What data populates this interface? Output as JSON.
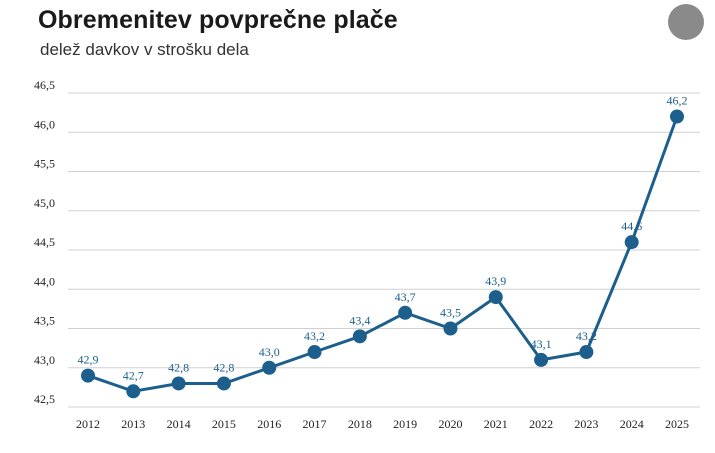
{
  "header": {
    "title": "Obremenitev povprečne plače",
    "subtitle": "delež davkov v strošku dela"
  },
  "colors": {
    "series": "#1d5f8c",
    "label": "#1d5f8c",
    "grid": "#d0d0d0",
    "badge": "#8a8a8a"
  },
  "chart_data": {
    "type": "line",
    "title": "Obremenitev povprečne plače",
    "subtitle": "delež davkov v strošku dela",
    "xlabel": "",
    "ylabel": "",
    "x": [
      "2012",
      "2013",
      "2014",
      "2015",
      "2016",
      "2017",
      "2018",
      "2019",
      "2020",
      "2021",
      "2022",
      "2023",
      "2024",
      "2025"
    ],
    "series": [
      {
        "values": [
          42.9,
          42.7,
          42.8,
          42.8,
          43.0,
          43.2,
          43.4,
          43.7,
          43.5,
          43.9,
          43.1,
          43.2,
          44.6,
          46.2
        ]
      }
    ],
    "data_labels": [
      "42,9",
      "42,7",
      "42,8",
      "42,8",
      "43,0",
      "43,2",
      "43,4",
      "43,7",
      "43,5",
      "43,9",
      "43,1",
      "43,2",
      "44,6",
      "46,2"
    ],
    "ylim": [
      42.5,
      46.5
    ],
    "yticks": [
      42.5,
      43.0,
      43.5,
      44.0,
      44.5,
      45.0,
      45.5,
      46.0,
      46.5
    ],
    "ytick_labels": [
      "42,5",
      "43,0",
      "43,5",
      "44,0",
      "44,5",
      "45,0",
      "45,5",
      "46,0",
      "46,5"
    ],
    "grid": true,
    "legend": "none"
  }
}
